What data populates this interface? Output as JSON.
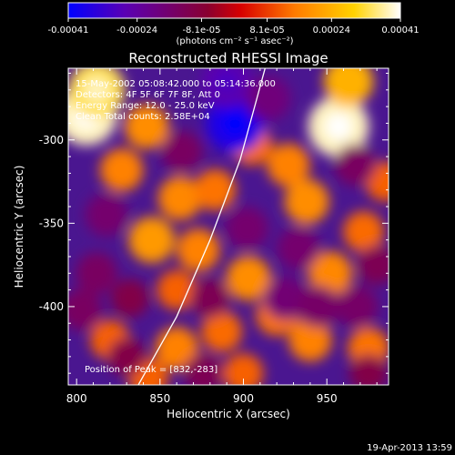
{
  "colorbar": {
    "tick_labels": [
      "-0.00041",
      "-0.00024",
      "-8.1e-05",
      "8.1e-05",
      "0.00024",
      "0.00041"
    ],
    "tick_values": [
      -0.00041,
      -0.00024,
      -8.1e-05,
      8.1e-05,
      0.00024,
      0.00041
    ],
    "range": [
      -0.00041,
      0.00041
    ],
    "units_label": "(photons cm⁻² s⁻¹ asec⁻²)",
    "colors": [
      "#0000ff",
      "#5a00b4",
      "#8a0030",
      "#d80000",
      "#ff7a00",
      "#ffd200",
      "#ffffff"
    ]
  },
  "annotation": {
    "line1": "15-May-2002 05:08:42.000 to 05:14:36.000",
    "line2": "Detectors: 4F 5F 6F 7F 8F, Att 0",
    "line3": "Energy Range: 12.0 - 25.0 keV",
    "line4": "Clean  Total counts: 2.58E+04",
    "peak": "Position of Peak = [832,-283]"
  },
  "footer": {
    "date": "19-Apr-2013 13:59"
  },
  "chart_data": {
    "type": "heatmap",
    "title": "Reconstructed RHESSI Image",
    "xlabel": "Heliocentric X (arcsec)",
    "ylabel": "Heliocentric Y (arcsec)",
    "xlim": [
      795,
      987
    ],
    "ylim": [
      -447,
      -257
    ],
    "x_ticks": [
      800,
      850,
      900,
      950
    ],
    "x_tick_labels": [
      "800",
      "850",
      "900",
      "950"
    ],
    "y_ticks": [
      -300,
      -350,
      -400
    ],
    "y_tick_labels": [
      "-300",
      "-350",
      "-400"
    ],
    "sources": [
      {
        "x": 806,
        "y": -285,
        "value": 0.00038
      },
      {
        "x": 812,
        "y": -270,
        "value": 0.00033
      },
      {
        "x": 842,
        "y": -292,
        "value": 0.00018
      },
      {
        "x": 827,
        "y": -318,
        "value": 0.00016
      },
      {
        "x": 845,
        "y": -360,
        "value": 0.0002
      },
      {
        "x": 862,
        "y": -335,
        "value": 0.00017
      },
      {
        "x": 873,
        "y": -366,
        "value": 0.00016
      },
      {
        "x": 860,
        "y": -390,
        "value": 0.00012
      },
      {
        "x": 883,
        "y": -330,
        "value": 0.00014
      },
      {
        "x": 905,
        "y": -303,
        "value": 0.00013
      },
      {
        "x": 927,
        "y": -315,
        "value": 0.00016
      },
      {
        "x": 938,
        "y": -337,
        "value": 0.00018
      },
      {
        "x": 957,
        "y": -292,
        "value": 0.00038
      },
      {
        "x": 963,
        "y": -265,
        "value": 0.00024
      },
      {
        "x": 952,
        "y": -380,
        "value": 0.00017
      },
      {
        "x": 972,
        "y": -355,
        "value": 0.00013
      },
      {
        "x": 903,
        "y": -383,
        "value": 0.00018
      },
      {
        "x": 920,
        "y": -405,
        "value": 0.00014
      },
      {
        "x": 887,
        "y": -415,
        "value": 0.00013
      },
      {
        "x": 860,
        "y": -425,
        "value": 0.00016
      },
      {
        "x": 820,
        "y": -420,
        "value": 0.00012
      },
      {
        "x": 940,
        "y": -420,
        "value": 0.00016
      },
      {
        "x": 975,
        "y": -425,
        "value": 0.00014
      },
      {
        "x": 900,
        "y": -440,
        "value": 0.00012
      },
      {
        "x": 843,
        "y": -443,
        "value": 0.00012
      },
      {
        "x": 985,
        "y": -325,
        "value": 0.00012
      },
      {
        "x": 895,
        "y": -290,
        "value": -0.00036
      },
      {
        "x": 890,
        "y": -265,
        "value": -0.00026
      },
      {
        "x": 915,
        "y": -275,
        "value": -0.00018
      },
      {
        "x": 863,
        "y": -307,
        "value": -0.00014
      },
      {
        "x": 818,
        "y": -345,
        "value": -0.00016
      },
      {
        "x": 812,
        "y": -380,
        "value": -0.00014
      },
      {
        "x": 803,
        "y": -402,
        "value": -0.00014
      },
      {
        "x": 832,
        "y": -395,
        "value": -0.0001
      },
      {
        "x": 880,
        "y": -395,
        "value": -0.00012
      },
      {
        "x": 902,
        "y": -353,
        "value": -0.00016
      },
      {
        "x": 933,
        "y": -365,
        "value": -0.00016
      },
      {
        "x": 925,
        "y": -395,
        "value": -0.00017
      },
      {
        "x": 967,
        "y": -315,
        "value": -0.00014
      },
      {
        "x": 968,
        "y": -400,
        "value": -0.00015
      },
      {
        "x": 945,
        "y": -400,
        "value": -0.00015
      },
      {
        "x": 980,
        "y": -375,
        "value": -0.00012
      },
      {
        "x": 975,
        "y": -440,
        "value": -0.0001
      },
      {
        "x": 876,
        "y": -440,
        "value": -0.00012
      },
      {
        "x": 830,
        "y": -430,
        "value": -0.0001
      }
    ],
    "limb_curve": [
      [
        837,
        -447
      ],
      [
        860,
        -406
      ],
      [
        880,
        -360
      ],
      [
        898,
        -312
      ],
      [
        913,
        -257
      ]
    ]
  }
}
